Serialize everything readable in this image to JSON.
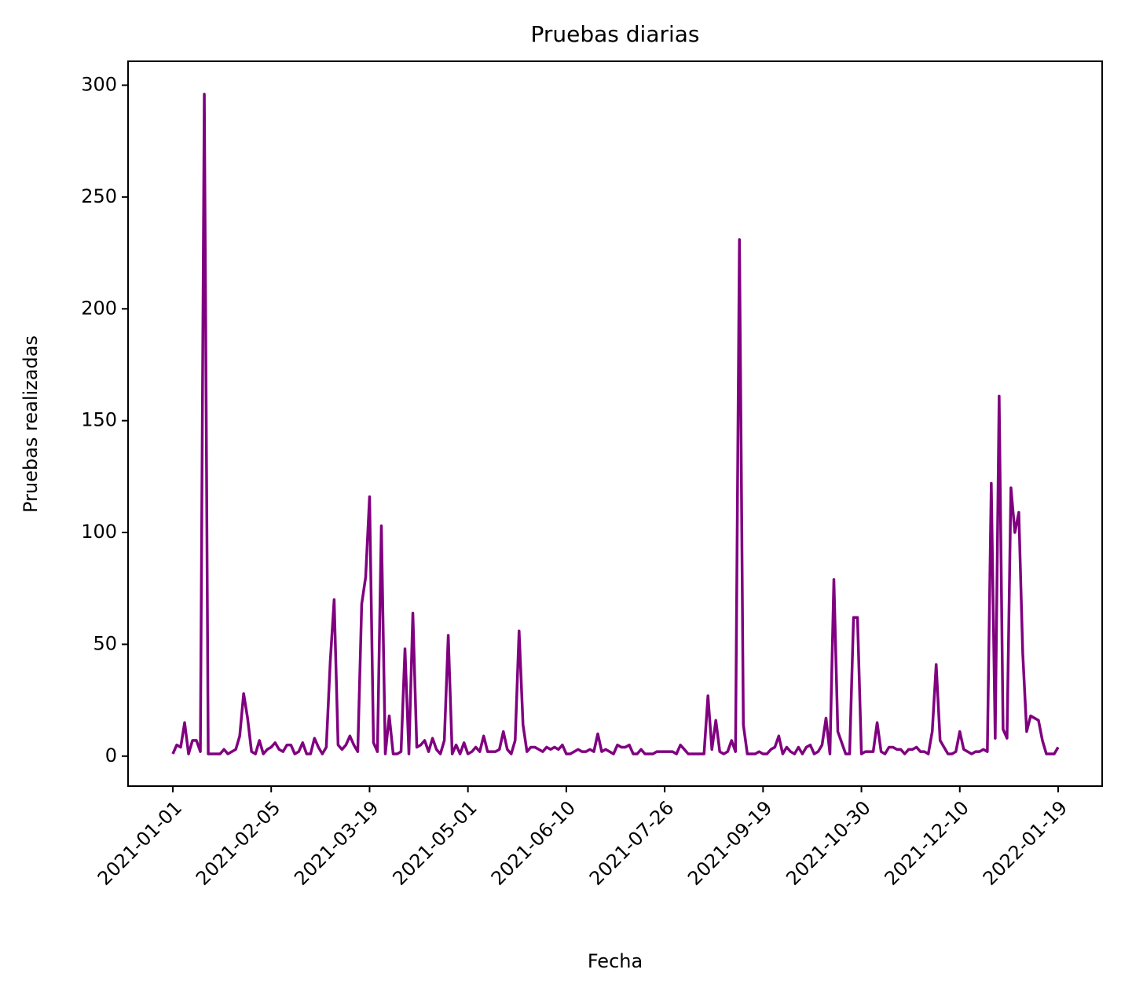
{
  "chart_data": {
    "type": "line",
    "title": "Pruebas diarias",
    "xlabel": "Fecha",
    "ylabel": "Pruebas realizadas",
    "categories": [
      "2021-01-01",
      null,
      null,
      null,
      null,
      null,
      null,
      null,
      null,
      null,
      null,
      null,
      null,
      null,
      null,
      null,
      null,
      null,
      null,
      null,
      null,
      null,
      null,
      null,
      null,
      "2021-02-05",
      null,
      null,
      null,
      null,
      null,
      null,
      null,
      null,
      null,
      null,
      null,
      null,
      null,
      null,
      null,
      null,
      null,
      null,
      null,
      null,
      null,
      null,
      null,
      null,
      "2021-03-19",
      null,
      null,
      null,
      null,
      null,
      null,
      null,
      null,
      null,
      null,
      null,
      null,
      null,
      null,
      null,
      null,
      null,
      null,
      null,
      null,
      null,
      null,
      null,
      null,
      "2021-05-01",
      null,
      null,
      null,
      null,
      null,
      null,
      null,
      null,
      null,
      null,
      null,
      null,
      null,
      null,
      null,
      null,
      null,
      null,
      null,
      null,
      null,
      null,
      null,
      null,
      "2021-06-10",
      null,
      null,
      null,
      null,
      null,
      null,
      null,
      null,
      null,
      null,
      null,
      null,
      null,
      null,
      null,
      null,
      null,
      null,
      null,
      null,
      null,
      null,
      null,
      null,
      "2021-07-26",
      null,
      null,
      null,
      null,
      null,
      null,
      null,
      null,
      null,
      null,
      null,
      null,
      null,
      null,
      null,
      null,
      null,
      null,
      null,
      null,
      null,
      null,
      null,
      null,
      "2021-09-19",
      null,
      null,
      null,
      null,
      null,
      null,
      null,
      null,
      null,
      null,
      null,
      null,
      null,
      null,
      null,
      null,
      null,
      null,
      null,
      null,
      null,
      null,
      null,
      null,
      "2021-10-30",
      null,
      null,
      null,
      null,
      null,
      null,
      null,
      null,
      null,
      null,
      null,
      null,
      null,
      null,
      null,
      null,
      null,
      null,
      null,
      null,
      null,
      null,
      null,
      null,
      "2021-12-10",
      null,
      null,
      null,
      null,
      null,
      null,
      null,
      null,
      null,
      null,
      null,
      null,
      null,
      null,
      null,
      null,
      null,
      null,
      null,
      null,
      null,
      null,
      null,
      null,
      "2022-01-19"
    ],
    "values": [
      1,
      5,
      4,
      15,
      1,
      7,
      7,
      2,
      296,
      1,
      1,
      1,
      1,
      3,
      1,
      2,
      3,
      9,
      28,
      17,
      2,
      1,
      7,
      1,
      3,
      4,
      6,
      3,
      2,
      5,
      5,
      1,
      2,
      6,
      1,
      1,
      8,
      4,
      1,
      4,
      42,
      70,
      5,
      3,
      5,
      9,
      5,
      2,
      68,
      80,
      116,
      6,
      2,
      103,
      1,
      18,
      1,
      1,
      2,
      48,
      1,
      64,
      4,
      5,
      7,
      2,
      8,
      3,
      1,
      7,
      54,
      1,
      5,
      1,
      6,
      1,
      2,
      4,
      2,
      9,
      2,
      2,
      2,
      3,
      11,
      3,
      1,
      7,
      56,
      14,
      2,
      4,
      4,
      3,
      2,
      4,
      3,
      4,
      3,
      5,
      1,
      1,
      2,
      3,
      2,
      2,
      3,
      2,
      10,
      2,
      3,
      2,
      1,
      5,
      4,
      4,
      5,
      1,
      1,
      3,
      1,
      1,
      1,
      2,
      2,
      2,
      2,
      2,
      1,
      5,
      3,
      1,
      1,
      1,
      1,
      1,
      27,
      3,
      16,
      2,
      1,
      2,
      7,
      2,
      231,
      14,
      1,
      1,
      1,
      2,
      1,
      1,
      3,
      4,
      9,
      1,
      4,
      2,
      1,
      4,
      1,
      4,
      5,
      1,
      2,
      5,
      17,
      1,
      79,
      11,
      6,
      1,
      1,
      62,
      62,
      1,
      2,
      2,
      2,
      15,
      2,
      1,
      4,
      4,
      3,
      3,
      1,
      3,
      3,
      4,
      2,
      2,
      1,
      11,
      41,
      7,
      4,
      1,
      1,
      2,
      11,
      3,
      2,
      1,
      2,
      2,
      3,
      2,
      122,
      8,
      161,
      12,
      8,
      120,
      100,
      109,
      46,
      11,
      18,
      17,
      16,
      7,
      1,
      1,
      1,
      4
    ],
    "color": "#800080",
    "ylim": [
      -13.4,
      310.7
    ],
    "yticks": [
      0,
      50,
      100,
      150,
      200,
      250,
      300
    ]
  }
}
